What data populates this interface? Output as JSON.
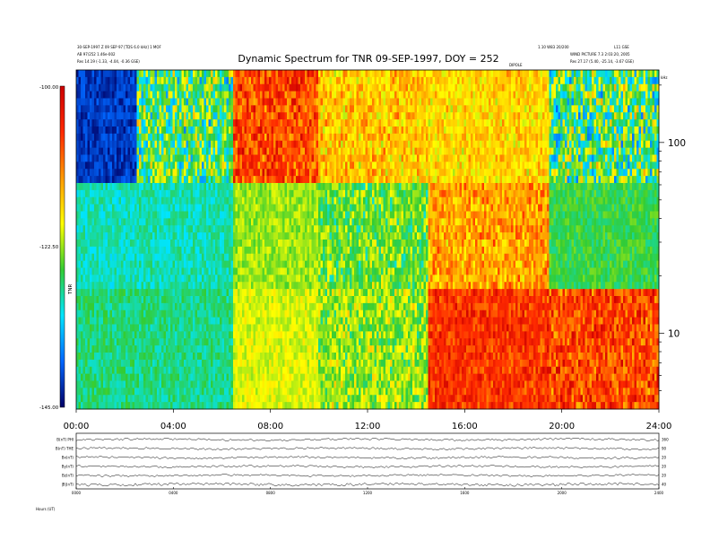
{
  "header": {
    "left_lines": [
      "30-SEP-1997 Z 09 SEP 97 [TDS 6.0 kHz] 1 MOF",
      "AB 97/252 1.46e-002",
      "Res    14.19 (-1.33, -4.04, -0.36 GSE)"
    ],
    "right_lines": [
      "1.10 W83 20/200",
      "WIND PICTURE 7.3 2:03:20, 2005",
      "Res    27.17 (5.40, -25.14, -3.67 GSE)"
    ],
    "right_tag": "L11 GSE",
    "mid_tag": "DIPOLE"
  },
  "chart_data": {
    "type": "heatmap",
    "title": "Dynamic Spectrum for TNR 09-SEP-1997, DOY = 252",
    "x_ticks": [
      "00:00",
      "04:00",
      "08:00",
      "12:00",
      "16:00",
      "20:00",
      "24:00"
    ],
    "x_range_hours": [
      0,
      24
    ],
    "y_scale": "log",
    "y_ticks": [
      10,
      100
    ],
    "y_unit": "kHz",
    "y_range": [
      4,
      240
    ],
    "colorbar": {
      "labels": [
        "-100.00",
        "-122.50",
        "-145.00"
      ],
      "range_db": [
        -145,
        -100
      ],
      "unit": "TNR",
      "colors": [
        "#cc0000",
        "#ff2a00",
        "#ff9900",
        "#ffff00",
        "#33cc33",
        "#00e5ff",
        "#0066ff",
        "#000066"
      ]
    },
    "colorbar_min_label": "-145.00",
    "dominant_color_timeline": [
      {
        "start": 0,
        "end": 2.5,
        "high_band": "dark-blue",
        "low_band": "cyan-green"
      },
      {
        "start": 2.5,
        "end": 6.5,
        "high_band": "blue-yellow",
        "low_band": "cyan"
      },
      {
        "start": 6.5,
        "end": 10,
        "high_band": "red-yellow",
        "low_band": "yellow-green"
      },
      {
        "start": 10,
        "end": 14.5,
        "high_band": "yellow-cyan",
        "low_band": "cyan-yellow"
      },
      {
        "start": 14.5,
        "end": 19.5,
        "high_band": "yellow",
        "low_band": "red-orange"
      },
      {
        "start": 19.5,
        "end": 24,
        "high_band": "cyan-blue",
        "low_band": "orange-red"
      }
    ],
    "panel_traces": {
      "labels": [
        "B(nT) PHI",
        "B(nT) THE",
        "Bx(nT)",
        "By(nT)",
        "Bz(nT)",
        "|B|(nT)"
      ],
      "right_labels": [
        "360",
        "90",
        "20",
        "20",
        "20",
        "40"
      ],
      "x_ticks": [
        "0000",
        "0400",
        "0800",
        "1200",
        "1600",
        "2000",
        "2400"
      ]
    }
  },
  "footer": {
    "corner_label": "Hours (UT)"
  }
}
